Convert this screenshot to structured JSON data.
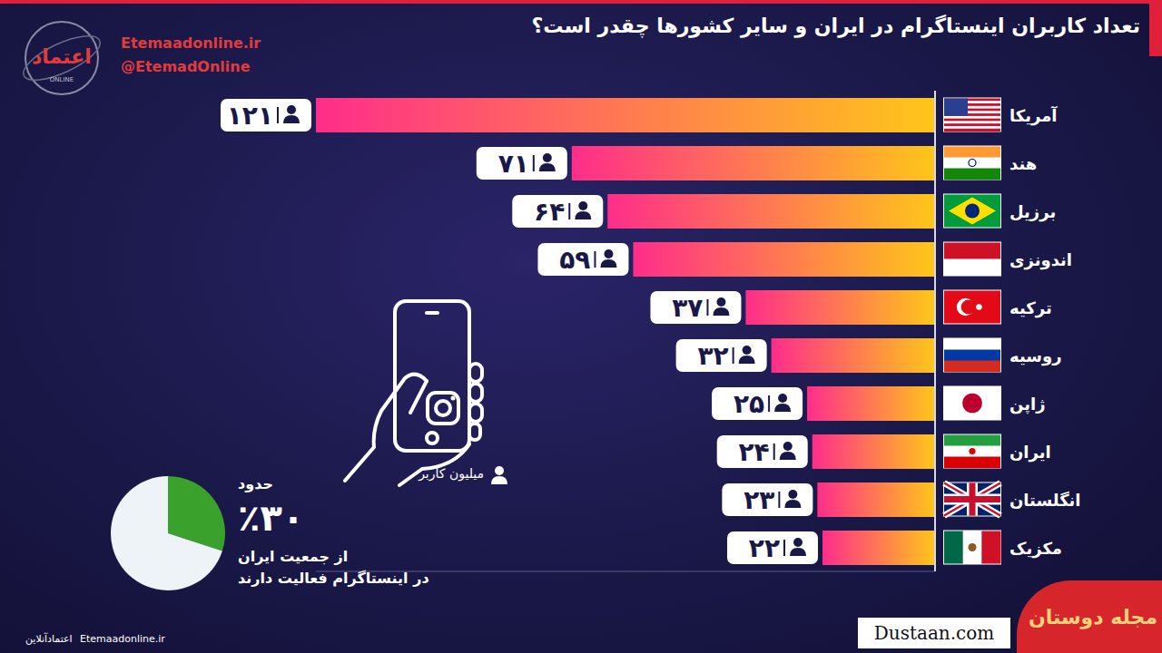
{
  "chart_data": [
    {
      "type": "bar",
      "title": "تعداد کاربران اینستاگرام در ایران و سایر کشورها چقدر است؟",
      "orientation": "horizontal",
      "categories": [
        "آمریکا",
        "هند",
        "برزیل",
        "اندونزی",
        "ترکیه",
        "روسیه",
        "ژاپن",
        "ایران",
        "انگلستان",
        "مکزیک"
      ],
      "values": [
        121,
        71,
        64,
        59,
        37,
        32,
        25,
        24,
        23,
        22
      ],
      "value_labels": [
        "۱۲۱",
        "۷۱",
        "۶۴",
        "۵۹",
        "۳۷",
        "۳۲",
        "۲۵",
        "۲۴",
        "۲۳",
        "۲۲"
      ],
      "data_labels": true,
      "xlabel": "میلیون کاربر",
      "xlim": [
        0,
        121
      ],
      "tick_labels": false,
      "grid": false,
      "color": "#ff2d8a"
    },
    {
      "type": "pie",
      "values": [
        30,
        70
      ],
      "value_labels": [
        "٪۳۰",
        null
      ],
      "colors": [
        "#3aa12c",
        "#eef3f8"
      ],
      "annotations": [
        "حدود",
        "از جمعیت ایران",
        "در اینستاگرام فعالیت دارند"
      ]
    }
  ],
  "branding": {
    "site": "Etemaadonline.ir",
    "handle": "@EtemadOnline",
    "logo": "اعتماد",
    "logo_sub": "ONLINE",
    "footer_name": "اعتمادآنلاین",
    "footer_site": "Etemaadonline.ir",
    "watermark_site": "Dustaan.com",
    "watermark_name": "مجله دوستان"
  }
}
